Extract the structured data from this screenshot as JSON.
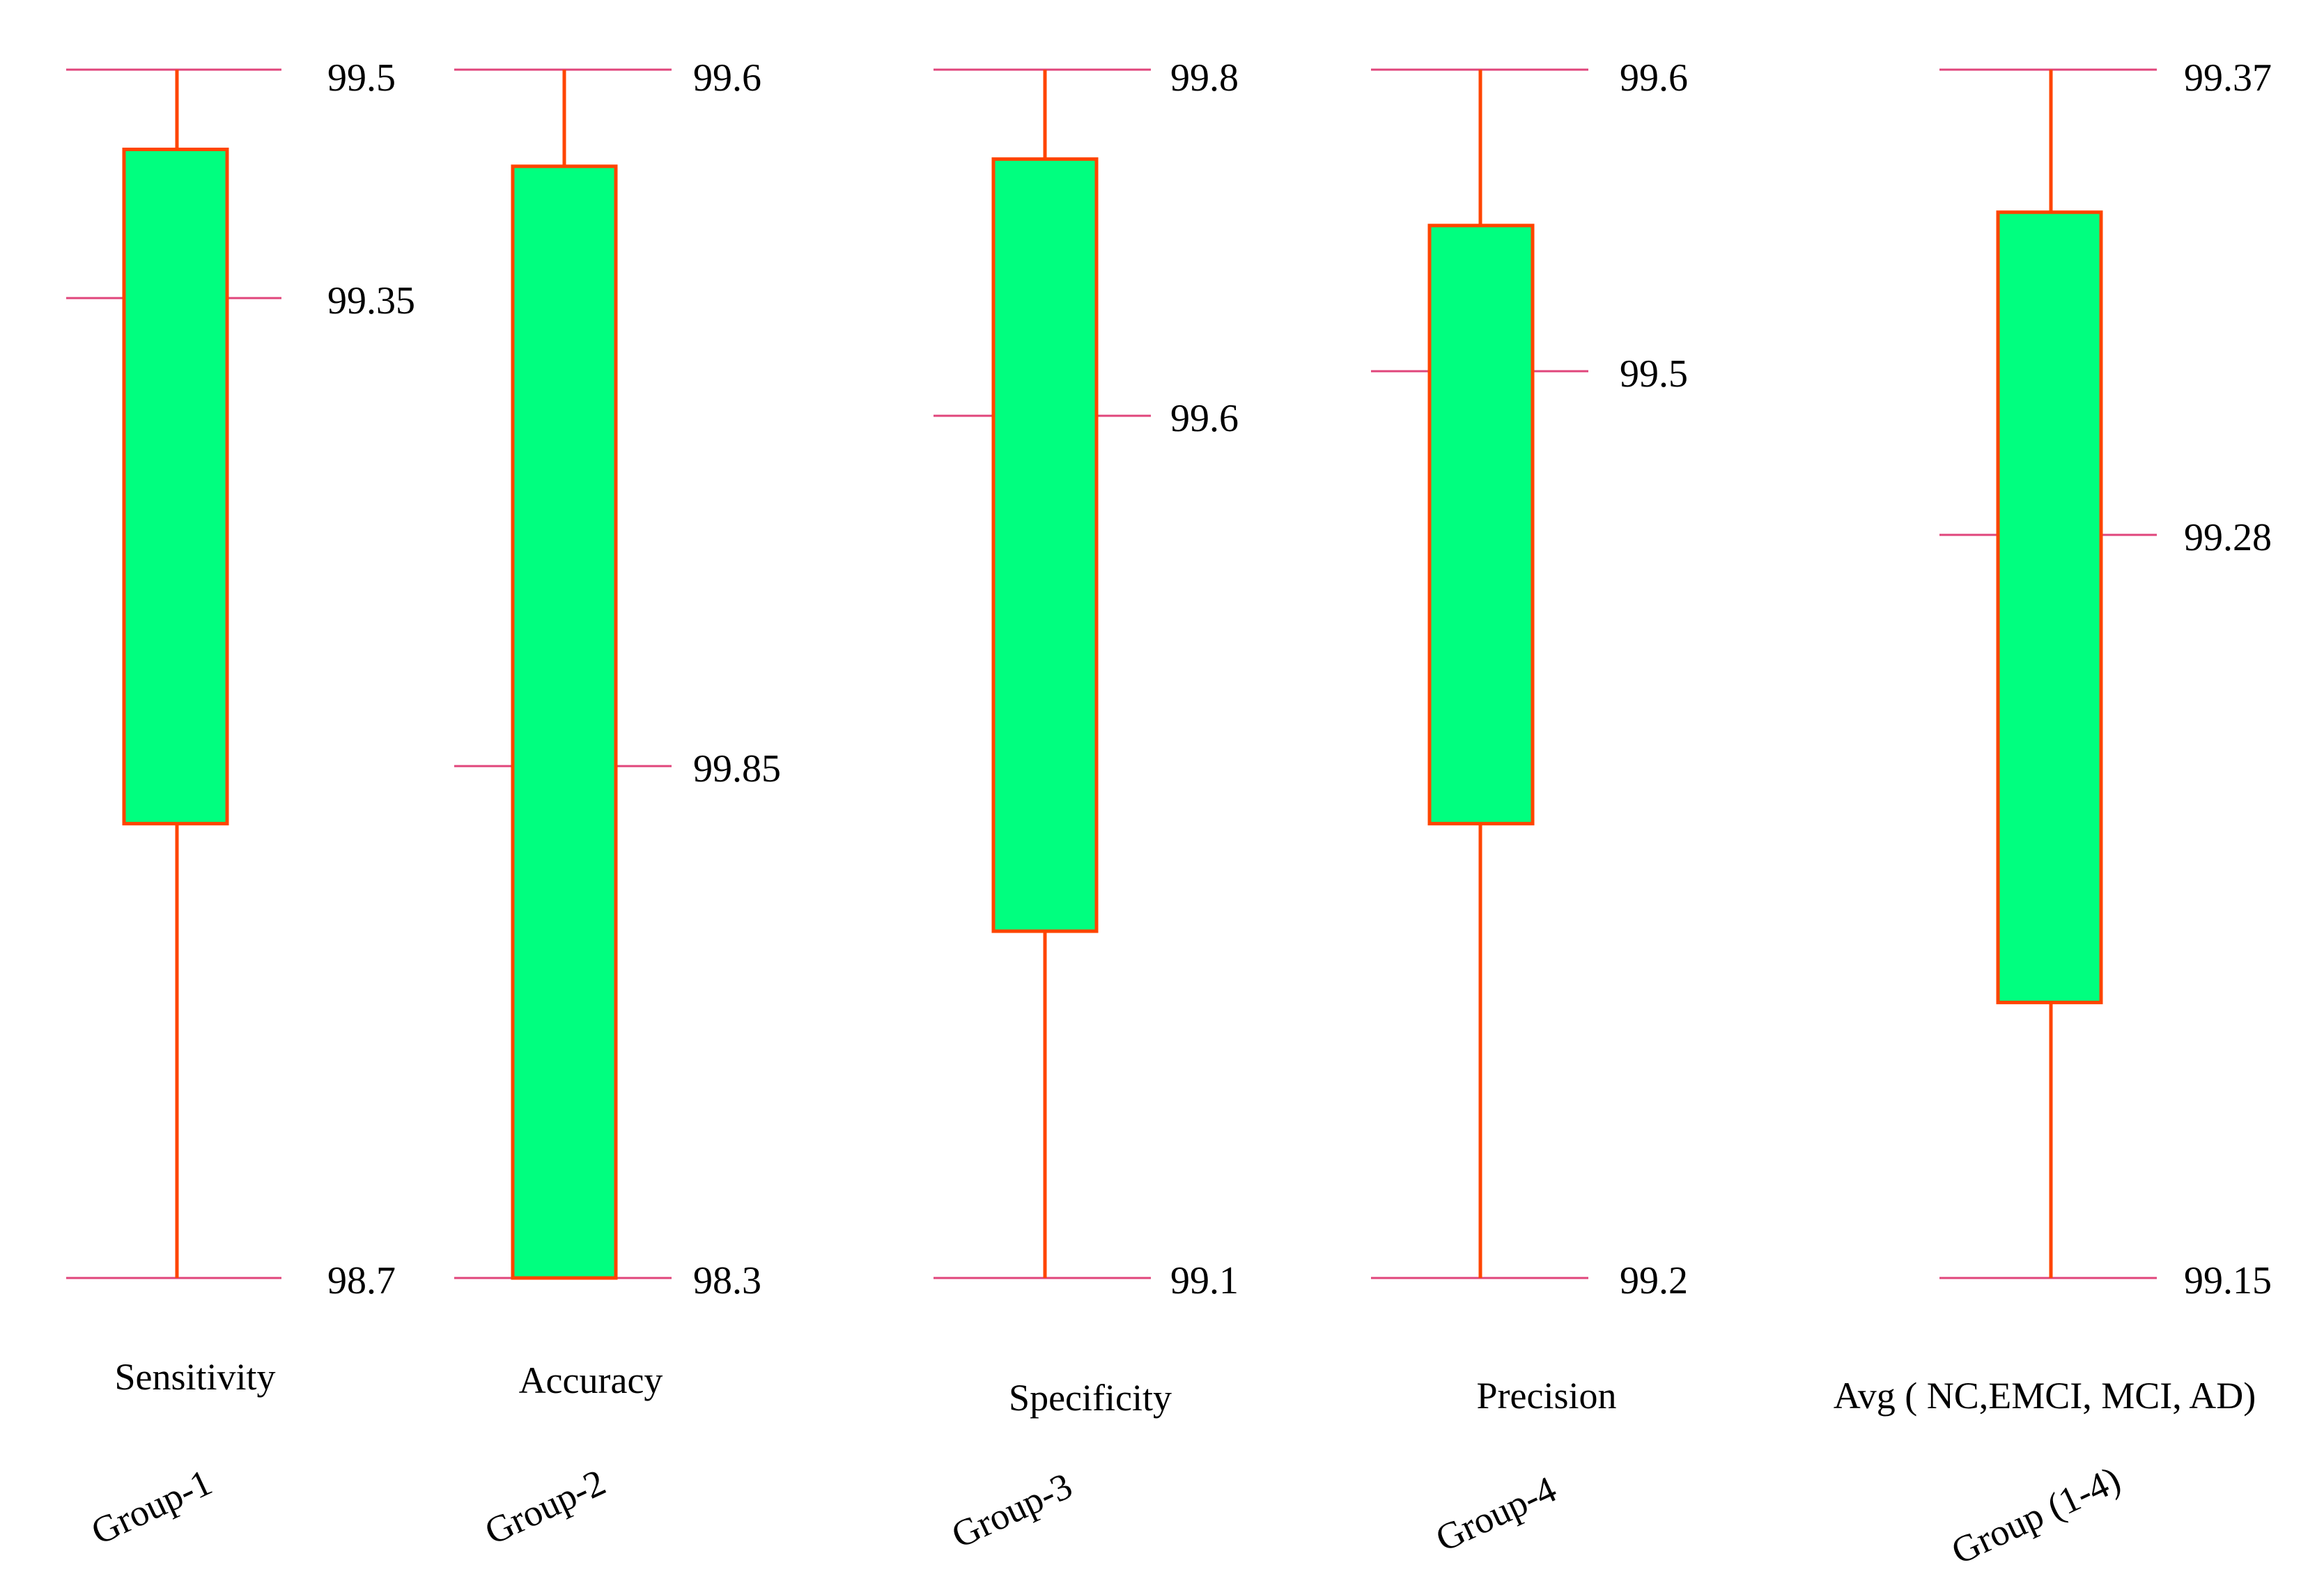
{
  "colors": {
    "box_fill": "#00ff7f",
    "box_edge": "#ff4500",
    "tick_line": "#e0457b",
    "text": "#000000"
  },
  "chart_data": {
    "type": "box",
    "title": "",
    "xlabel": "",
    "ylabel": "",
    "grid": false,
    "series": [
      {
        "metric": "Sensitivity",
        "group": "Group-1",
        "max": 99.5,
        "median": 99.35,
        "min": 98.7,
        "max_label": "99.5",
        "median_label": "99.35",
        "min_label": "98.7",
        "box_upper_frac": 0.934,
        "box_lower_frac": 0.376
      },
      {
        "metric": "Accuracy",
        "group": "Group-2",
        "max": 99.6,
        "median": 99.85,
        "min": 98.3,
        "max_label": "99.6",
        "median_label": "99.85",
        "min_label": "98.3",
        "box_upper_frac": 0.92,
        "box_lower_frac": 0.0
      },
      {
        "metric": "Specificity",
        "group": "Group-3",
        "max": 99.8,
        "median": 99.6,
        "min": 99.1,
        "max_label": "99.8",
        "median_label": "99.6",
        "min_label": "99.1",
        "box_upper_frac": 0.926,
        "box_lower_frac": 0.287
      },
      {
        "metric": "Precision",
        "group": "Group-4",
        "max": 99.6,
        "median": 99.5,
        "min": 99.2,
        "max_label": "99.6",
        "median_label": "99.5",
        "min_label": "99.2",
        "box_upper_frac": 0.871,
        "box_lower_frac": 0.376
      },
      {
        "metric": "Avg ( NC,EMCI, MCI, AD)",
        "group": "Group (1-4)",
        "max": 99.37,
        "median": 99.28,
        "min": 99.15,
        "max_label": "99.37",
        "median_label": "99.28",
        "min_label": "99.15",
        "box_upper_frac": 0.882,
        "box_lower_frac": 0.228
      }
    ]
  }
}
